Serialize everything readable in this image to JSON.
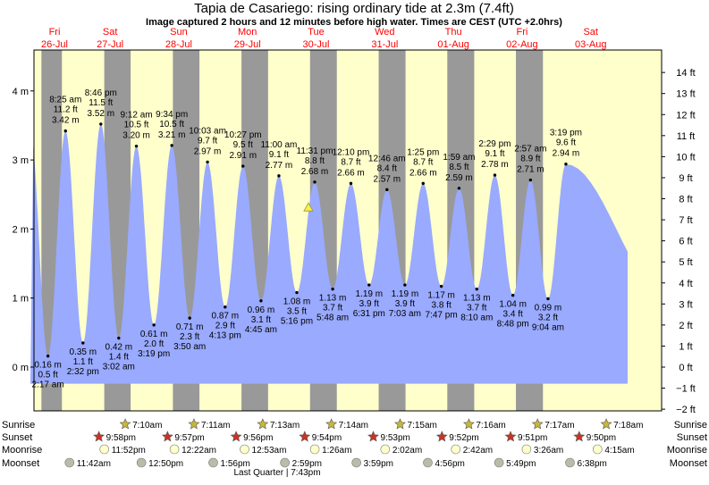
{
  "chart_data": {
    "type": "area",
    "title": "Tapia de Casariego: rising  ordinary tide at 2.3m (7.4ft)",
    "subtitle": "Image captured 2 hours and 12 minutes before high water. Times are CEST (UTC +2.0hrs)",
    "y_axis_left": {
      "unit": "m",
      "ylim": [
        -0.6,
        4.5
      ],
      "ticks": [
        "0 m",
        "1 m",
        "2 m",
        "3 m",
        "4 m"
      ],
      "tick_values": [
        0,
        1,
        2,
        3,
        4
      ]
    },
    "y_axis_right": {
      "unit": "ft",
      "ticks": [
        "−2 ft",
        "−1 ft",
        "0 ft",
        "1 ft",
        "2 ft",
        "3 ft",
        "4 ft",
        "5 ft",
        "6 ft",
        "7 ft",
        "8 ft",
        "9 ft",
        "10 ft",
        "11 ft",
        "12 ft",
        "13 ft",
        "14 ft"
      ],
      "tick_values": [
        -2,
        -1,
        0,
        1,
        2,
        3,
        4,
        5,
        6,
        7,
        8,
        9,
        10,
        11,
        12,
        13,
        14
      ]
    },
    "days": [
      {
        "weekday": "Fri",
        "date": "26-Jul"
      },
      {
        "weekday": "Sat",
        "date": "27-Jul"
      },
      {
        "weekday": "Sun",
        "date": "28-Jul"
      },
      {
        "weekday": "Mon",
        "date": "29-Jul"
      },
      {
        "weekday": "Tue",
        "date": "30-Jul"
      },
      {
        "weekday": "Wed",
        "date": "31-Jul"
      },
      {
        "weekday": "Thu",
        "date": "01-Aug"
      },
      {
        "weekday": "Fri",
        "date": "02-Aug"
      },
      {
        "weekday": "Sat",
        "date": "03-Aug"
      }
    ],
    "series": [
      {
        "name": "",
        "points": [
          {
            "type": "low",
            "time": "2:17 am",
            "m": "0.16 m",
            "ft": "0.5 ft",
            "h": 0.16,
            "x": 2.28
          },
          {
            "type": "high",
            "time": "8:25 am",
            "m": "3.42 m",
            "ft": "11.2 ft",
            "h": 3.42,
            "x": 8.42
          },
          {
            "type": "low",
            "time": "2:32 pm",
            "m": "0.35 m",
            "ft": "1.1 ft",
            "h": 0.35,
            "x": 14.53
          },
          {
            "type": "high",
            "time": "8:46 pm",
            "m": "3.52 m",
            "ft": "11.5 ft",
            "h": 3.52,
            "x": 20.77
          },
          {
            "type": "low",
            "time": "3:02 am",
            "m": "0.42 m",
            "ft": "1.4 ft",
            "h": 0.42,
            "x": 27.03
          },
          {
            "type": "high",
            "time": "9:12 am",
            "m": "3.20 m",
            "ft": "10.5 ft",
            "h": 3.2,
            "x": 33.2
          },
          {
            "type": "low",
            "time": "3:19 pm",
            "m": "0.61 m",
            "ft": "2.0 ft",
            "h": 0.61,
            "x": 39.32
          },
          {
            "type": "high",
            "time": "9:34 pm",
            "m": "3.21 m",
            "ft": "10.5 ft",
            "h": 3.21,
            "x": 45.57
          },
          {
            "type": "low",
            "time": "3:50 am",
            "m": "0.71 m",
            "ft": "2.3 ft",
            "h": 0.71,
            "x": 51.83
          },
          {
            "type": "high",
            "time": "10:03 am",
            "m": "2.97 m",
            "ft": "9.7 ft",
            "h": 2.97,
            "x": 58.05
          },
          {
            "type": "low",
            "time": "4:13 pm",
            "m": "0.87 m",
            "ft": "2.9 ft",
            "h": 0.87,
            "x": 64.22
          },
          {
            "type": "high",
            "time": "10:27 pm",
            "m": "2.91 m",
            "ft": "9.5 ft",
            "h": 2.91,
            "x": 70.45
          },
          {
            "type": "low",
            "time": "4:45 am",
            "m": "0.96 m",
            "ft": "3.1 ft",
            "h": 0.96,
            "x": 76.75
          },
          {
            "type": "high",
            "time": "11:00 am",
            "m": "2.77 m",
            "ft": "9.1 ft",
            "h": 2.77,
            "x": 83.0
          },
          {
            "type": "low",
            "time": "5:16 pm",
            "m": "1.08 m",
            "ft": "3.5 ft",
            "h": 1.08,
            "x": 89.27
          },
          {
            "type": "high",
            "time": "11:31 pm",
            "m": "2.68 m",
            "ft": "8.8 ft",
            "h": 2.68,
            "x": 95.52
          },
          {
            "type": "low",
            "time": "5:48 am",
            "m": "1.13 m",
            "ft": "3.7 ft",
            "h": 1.13,
            "x": 101.8
          },
          {
            "type": "high",
            "time": "12:10 pm",
            "m": "2.66 m",
            "ft": "8.7 ft",
            "h": 2.66,
            "x": 108.17
          },
          {
            "type": "low",
            "time": "6:31 pm",
            "m": "1.19 m",
            "ft": "3.9 ft",
            "h": 1.19,
            "x": 114.52
          },
          {
            "type": "high",
            "time": "12:46 am",
            "m": "2.57 m",
            "ft": "8.4 ft",
            "h": 2.57,
            "x": 120.77
          },
          {
            "type": "low",
            "time": "7:03 am",
            "m": "1.19 m",
            "ft": "3.9 ft",
            "h": 1.19,
            "x": 127.05
          },
          {
            "type": "high",
            "time": "1:25 pm",
            "m": "2.66 m",
            "ft": "8.7 ft",
            "h": 2.66,
            "x": 133.42
          },
          {
            "type": "low",
            "time": "7:47 pm",
            "m": "1.17 m",
            "ft": "3.8 ft",
            "h": 1.17,
            "x": 139.78
          },
          {
            "type": "high",
            "time": "1:59 am",
            "m": "2.59 m",
            "ft": "8.5 ft",
            "h": 2.59,
            "x": 145.98
          },
          {
            "type": "low",
            "time": "8:10 am",
            "m": "1.13 m",
            "ft": "3.7 ft",
            "h": 1.13,
            "x": 152.17
          },
          {
            "type": "high",
            "time": "2:29 pm",
            "m": "2.78 m",
            "ft": "9.1 ft",
            "h": 2.78,
            "x": 158.48
          },
          {
            "type": "low",
            "time": "8:48 pm",
            "m": "1.04 m",
            "ft": "3.4 ft",
            "h": 1.04,
            "x": 164.8
          },
          {
            "type": "high",
            "time": "2:57 am",
            "m": "2.71 m",
            "ft": "8.9 ft",
            "h": 2.71,
            "x": 170.95
          },
          {
            "type": "low",
            "time": "9:04 am",
            "m": "0.99 m",
            "ft": "3.2 ft",
            "h": 0.99,
            "x": 177.07
          },
          {
            "type": "high",
            "time": "3:19 pm",
            "m": "2.94 m",
            "ft": "9.6 ft",
            "h": 2.94,
            "x": 183.32
          }
        ]
      }
    ],
    "current_marker": {
      "x": 93.32,
      "h": 2.3
    },
    "night_bands": [
      [
        0.0,
        7.17
      ],
      [
        21.97,
        31.18
      ],
      [
        45.95,
        55.22
      ],
      [
        69.93,
        79.23
      ],
      [
        93.9,
        103.25
      ],
      [
        117.88,
        127.27
      ],
      [
        141.87,
        151.28
      ],
      [
        165.85,
        175.3
      ]
    ],
    "astro": {
      "rows": [
        {
          "key": "sunrise",
          "label": "Sunrise"
        },
        {
          "key": "sunset",
          "label": "Sunset"
        },
        {
          "key": "moonrise",
          "label": "Moonrise"
        },
        {
          "key": "moonset",
          "label": "Moonset"
        }
      ],
      "sunrise": [
        {
          "t": "7:10am",
          "x": 31.17
        },
        {
          "t": "7:11am",
          "x": 55.18
        },
        {
          "t": "7:13am",
          "x": 79.22
        },
        {
          "t": "7:14am",
          "x": 103.23
        },
        {
          "t": "7:15am",
          "x": 127.25
        },
        {
          "t": "7:16am",
          "x": 151.27
        },
        {
          "t": "7:17am",
          "x": 175.28
        },
        {
          "t": "7:18am",
          "x": 199.3
        }
      ],
      "sunset": [
        {
          "t": "9:58pm",
          "x": 21.97
        },
        {
          "t": "9:57pm",
          "x": 45.95
        },
        {
          "t": "9:56pm",
          "x": 69.93
        },
        {
          "t": "9:54pm",
          "x": 93.9
        },
        {
          "t": "9:53pm",
          "x": 117.88
        },
        {
          "t": "9:52pm",
          "x": 141.87
        },
        {
          "t": "9:51pm",
          "x": 165.85
        },
        {
          "t": "9:50pm",
          "x": 189.83
        }
      ],
      "moonrise": [
        {
          "t": "11:52pm",
          "x": 23.87
        },
        {
          "t": "12:22am",
          "x": 48.37
        },
        {
          "t": "12:53am",
          "x": 72.88
        },
        {
          "t": "1:26am",
          "x": 97.43
        },
        {
          "t": "2:02am",
          "x": 122.03
        },
        {
          "t": "2:42am",
          "x": 146.7
        },
        {
          "t": "3:26am",
          "x": 171.43
        },
        {
          "t": "4:15am",
          "x": 196.25
        }
      ],
      "moonset": [
        {
          "t": "11:42am",
          "x": 11.7
        },
        {
          "t": "12:50pm",
          "x": 36.83
        },
        {
          "t": "1:56pm",
          "x": 61.93
        },
        {
          "t": "2:59pm",
          "x": 86.98
        },
        {
          "t": "3:59pm",
          "x": 111.98
        },
        {
          "t": "4:56pm",
          "x": 136.93
        },
        {
          "t": "5:49pm",
          "x": 161.82
        },
        {
          "t": "6:38pm",
          "x": 186.63
        }
      ],
      "moon_phase_note": "Last Quarter | 7:43pm"
    },
    "colors": {
      "day": "#ffffcc",
      "night": "#999999",
      "water": "#99aaff",
      "day_label": "#ff0000",
      "text": "#000000",
      "marker": "#ffee44",
      "sun_star": "#c8b838",
      "sunset_star": "#cc3322",
      "moon_disk": "#ffffcc",
      "moonset_disk": "#bbbbaa"
    }
  }
}
